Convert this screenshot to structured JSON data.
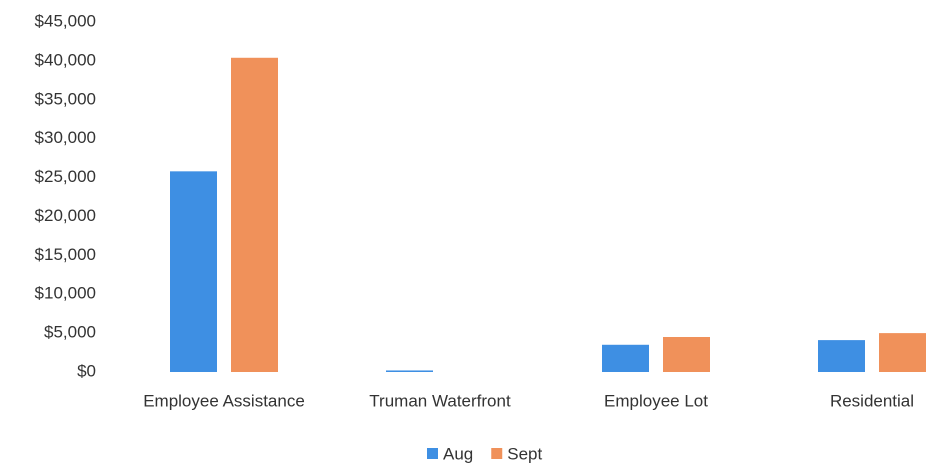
{
  "chart_data": {
    "type": "bar",
    "categories": [
      "Employee Assistance",
      "Truman Waterfront",
      "Employee Lot",
      "Residential"
    ],
    "series": [
      {
        "name": "Aug",
        "color": "#3e8fe3",
        "values": [
          25800,
          200,
          3500,
          4100
        ]
      },
      {
        "name": "Sept",
        "color": "#f0915a",
        "values": [
          40400,
          0,
          4500,
          5000
        ]
      }
    ],
    "ylim": [
      0,
      45000
    ],
    "yticks": [
      {
        "value": 0,
        "label": "$0"
      },
      {
        "value": 5000,
        "label": "$5,000"
      },
      {
        "value": 10000,
        "label": "$10,000"
      },
      {
        "value": 15000,
        "label": "$15,000"
      },
      {
        "value": 20000,
        "label": "$20,000"
      },
      {
        "value": 25000,
        "label": "$25,000"
      },
      {
        "value": 30000,
        "label": "$30,000"
      },
      {
        "value": 35000,
        "label": "$35,000"
      },
      {
        "value": 40000,
        "label": "$40,000"
      },
      {
        "value": 45000,
        "label": "$45,000"
      }
    ],
    "grid": false,
    "legend": "bottom"
  }
}
